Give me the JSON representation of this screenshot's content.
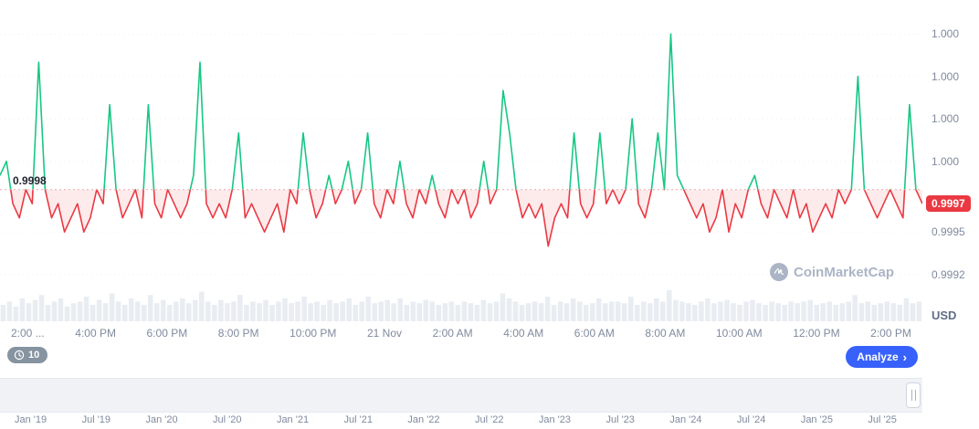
{
  "chart_data": {
    "type": "line",
    "title": "",
    "asset_quote": "USD",
    "baseline": 0.9998,
    "baseline_label": "0.9998",
    "current_price": "0.9997",
    "current_value": 0.9997,
    "unit_label": "USD",
    "ylim": [
      0.99914,
      1.00114
    ],
    "y_ticks": [
      {
        "value": 1.0009,
        "label": "1.000"
      },
      {
        "value": 1.0006,
        "label": "1.000"
      },
      {
        "value": 1.0003,
        "label": "1.000"
      },
      {
        "value": 1.0,
        "label": "1.000"
      },
      {
        "value": 0.9995,
        "label": "0.9995"
      },
      {
        "value": 0.9992,
        "label": "0.9992"
      }
    ],
    "x_labels": [
      "2:00 ...",
      "4:00 PM",
      "6:00 PM",
      "8:00 PM",
      "10:00 PM",
      "21 Nov",
      "2:00 AM",
      "4:00 AM",
      "6:00 AM",
      "8:00 AM",
      "10:00 AM",
      "12:00 PM",
      "2:00 PM"
    ],
    "values": [
      0.9999,
      1.0,
      0.9997,
      0.9996,
      0.9998,
      0.9997,
      1.0007,
      0.9998,
      0.9996,
      0.9997,
      0.9995,
      0.9996,
      0.9997,
      0.9995,
      0.9996,
      0.9998,
      0.9997,
      1.0004,
      0.9998,
      0.9996,
      0.9997,
      0.9998,
      0.9996,
      1.0004,
      0.9997,
      0.9996,
      0.9998,
      0.9997,
      0.9996,
      0.9997,
      0.9999,
      1.0007,
      0.9997,
      0.9996,
      0.9997,
      0.9996,
      0.9998,
      1.0002,
      0.9996,
      0.9997,
      0.9996,
      0.9995,
      0.9996,
      0.9997,
      0.9995,
      0.9998,
      0.9997,
      1.0002,
      0.9998,
      0.9996,
      0.9997,
      0.9999,
      0.9997,
      0.9998,
      1.0,
      0.9997,
      0.9998,
      1.0002,
      0.9997,
      0.9996,
      0.9998,
      0.9997,
      1.0,
      0.9997,
      0.9996,
      0.9998,
      0.9997,
      0.9999,
      0.9997,
      0.9996,
      0.9998,
      0.9997,
      0.9998,
      0.9996,
      0.9997,
      1.0,
      0.9997,
      0.9998,
      1.0005,
      1.0002,
      0.9998,
      0.9996,
      0.9997,
      0.9996,
      0.9997,
      0.9994,
      0.9996,
      0.9997,
      0.9996,
      1.0002,
      0.9997,
      0.9996,
      0.9997,
      1.0002,
      0.9997,
      0.9998,
      0.9997,
      0.9998,
      1.0003,
      0.9997,
      0.9996,
      0.9998,
      1.0002,
      0.9998,
      1.0009,
      0.9999,
      0.9998,
      0.9997,
      0.9996,
      0.9997,
      0.9995,
      0.9996,
      0.9998,
      0.9995,
      0.9997,
      0.9996,
      0.9998,
      0.9999,
      0.9997,
      0.9996,
      0.9998,
      0.9997,
      0.9996,
      0.9998,
      0.9996,
      0.9997,
      0.9995,
      0.9996,
      0.9997,
      0.9996,
      0.9998,
      0.9997,
      0.9998,
      1.0006,
      0.9998,
      0.9997,
      0.9996,
      0.9997,
      0.9998,
      0.9997,
      0.9996,
      1.0004,
      0.9998,
      0.9997
    ],
    "volumes": [
      0.5,
      0.6,
      0.45,
      0.7,
      0.55,
      0.65,
      0.8,
      0.5,
      0.6,
      0.7,
      0.45,
      0.55,
      0.6,
      0.75,
      0.5,
      0.65,
      0.55,
      0.85,
      0.6,
      0.5,
      0.7,
      0.6,
      0.5,
      0.8,
      0.55,
      0.65,
      0.5,
      0.6,
      0.7,
      0.55,
      0.65,
      0.9,
      0.6,
      0.5,
      0.65,
      0.55,
      0.6,
      0.8,
      0.5,
      0.6,
      0.55,
      0.65,
      0.5,
      0.6,
      0.7,
      0.55,
      0.6,
      0.75,
      0.55,
      0.6,
      0.5,
      0.65,
      0.55,
      0.6,
      0.7,
      0.5,
      0.6,
      0.75,
      0.55,
      0.6,
      0.65,
      0.55,
      0.7,
      0.5,
      0.6,
      0.55,
      0.65,
      0.6,
      0.5,
      0.55,
      0.6,
      0.5,
      0.6,
      0.55,
      0.5,
      0.65,
      0.55,
      0.6,
      0.85,
      0.7,
      0.6,
      0.5,
      0.55,
      0.6,
      0.55,
      0.75,
      0.5,
      0.6,
      0.55,
      0.7,
      0.6,
      0.5,
      0.55,
      0.7,
      0.55,
      0.6,
      0.6,
      0.55,
      0.75,
      0.5,
      0.6,
      0.55,
      0.7,
      0.6,
      0.95,
      0.65,
      0.6,
      0.55,
      0.5,
      0.6,
      0.7,
      0.55,
      0.6,
      0.65,
      0.55,
      0.5,
      0.6,
      0.65,
      0.55,
      0.5,
      0.6,
      0.55,
      0.5,
      0.6,
      0.55,
      0.6,
      0.65,
      0.5,
      0.55,
      0.6,
      0.5,
      0.55,
      0.6,
      0.8,
      0.55,
      0.6,
      0.5,
      0.55,
      0.6,
      0.55,
      0.5,
      0.7,
      0.55,
      0.6
    ]
  },
  "watermark": {
    "text": "CoinMarketCap"
  },
  "controls": {
    "history_count": "10",
    "analyze_label": "Analyze"
  },
  "icons": {
    "analyze_chevron": "›",
    "history_icon": "clock",
    "logo_icon": "coinmarketcap-m"
  },
  "colors": {
    "up": "#16c784",
    "down": "#ea3943",
    "down_fill": "rgba(234,57,67,0.10)",
    "baseline": "#f0a6aa",
    "grid": "#eef1f4",
    "volume": "#e9edf2",
    "axis_text": "#808a9d",
    "accent_blue": "#3861fb",
    "badge_bg": "#ea3943"
  },
  "navigator": {
    "labels": [
      "Jan '19",
      "Jul '19",
      "Jan '20",
      "Jul '20",
      "Jan '21",
      "Jul '21",
      "Jan '22",
      "Jul '22",
      "Jan '23",
      "Jul '23",
      "Jan '24",
      "Jul '24",
      "Jan '25",
      "Jul '25"
    ]
  }
}
